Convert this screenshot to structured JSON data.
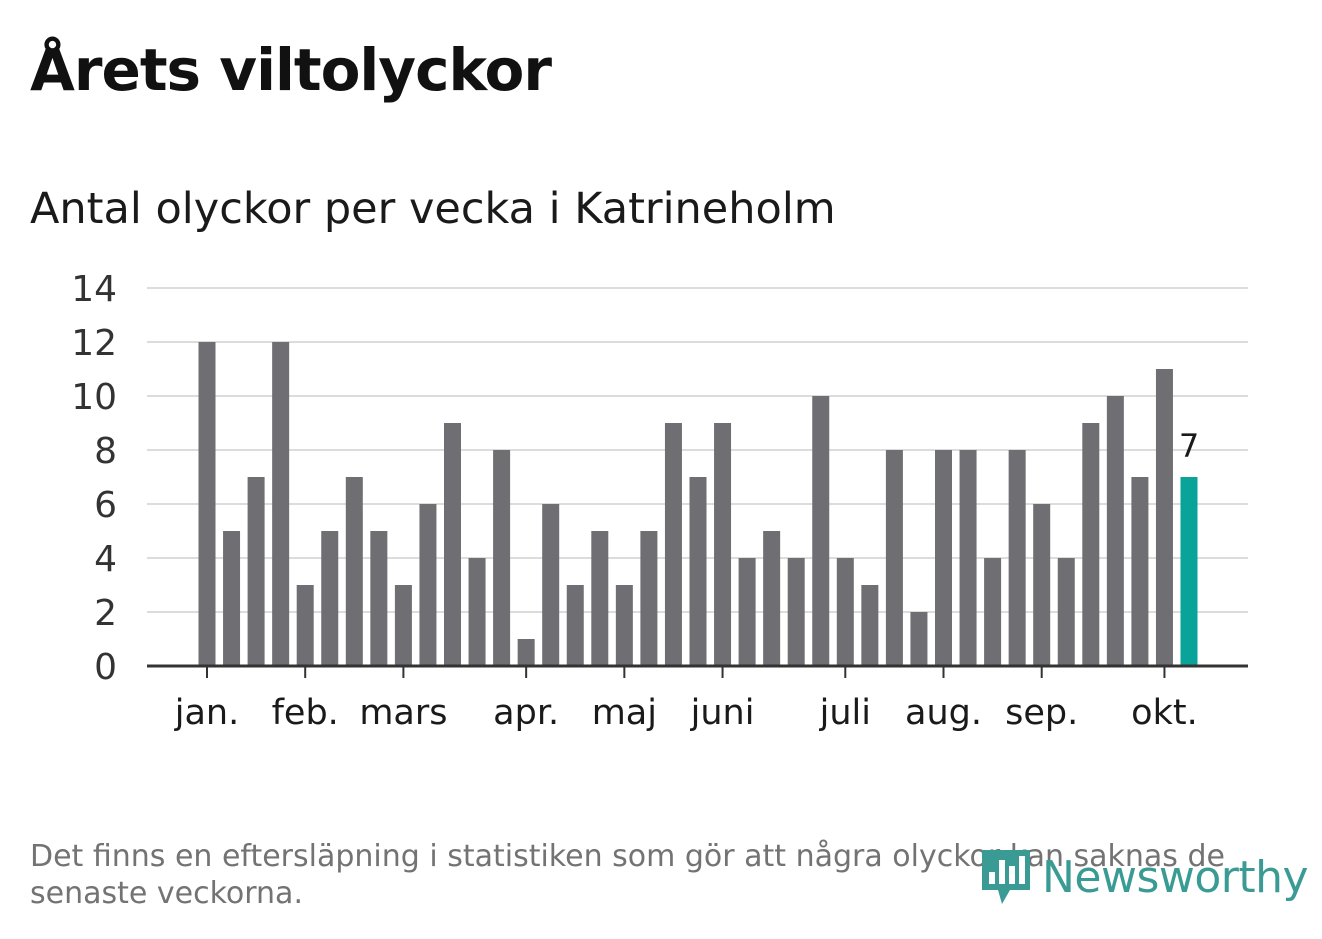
{
  "title": "Årets viltolyckor",
  "subtitle": "Antal olyckor per vecka i Katrineholm",
  "footnote": "Det finns en eftersläpning i statistiken som gör att några olyckor kan saknas de senaste veckorna.",
  "logo_text": "Newsworthy",
  "colors": {
    "bar": "#6e6e73",
    "highlight": "#0aa399",
    "grid": "#dcdcdc",
    "axis": "#333333",
    "logo": "#3a9b94"
  },
  "chart_data": {
    "type": "bar",
    "title": "Antal olyckor per vecka i Katrineholm",
    "xlabel": "",
    "ylabel": "",
    "ylim": [
      0,
      14
    ],
    "yticks": [
      0,
      2,
      4,
      6,
      8,
      10,
      12,
      14
    ],
    "values": [
      12,
      5,
      7,
      12,
      3,
      5,
      7,
      5,
      3,
      6,
      9,
      4,
      8,
      1,
      6,
      3,
      5,
      3,
      5,
      9,
      7,
      9,
      4,
      5,
      4,
      10,
      4,
      3,
      8,
      2,
      8,
      8,
      4,
      8,
      6,
      4,
      9,
      10,
      7,
      11,
      7
    ],
    "month_ticks": [
      {
        "label": "jan.",
        "week": 0
      },
      {
        "label": "feb.",
        "week": 4
      },
      {
        "label": "mars",
        "week": 8
      },
      {
        "label": "apr.",
        "week": 13
      },
      {
        "label": "maj",
        "week": 17
      },
      {
        "label": "juni",
        "week": 21
      },
      {
        "label": "juli",
        "week": 26
      },
      {
        "label": "aug.",
        "week": 30
      },
      {
        "label": "sep.",
        "week": 34
      },
      {
        "label": "okt.",
        "week": 39
      }
    ],
    "highlight_index": 40,
    "annotation": "7",
    "grid": true
  }
}
